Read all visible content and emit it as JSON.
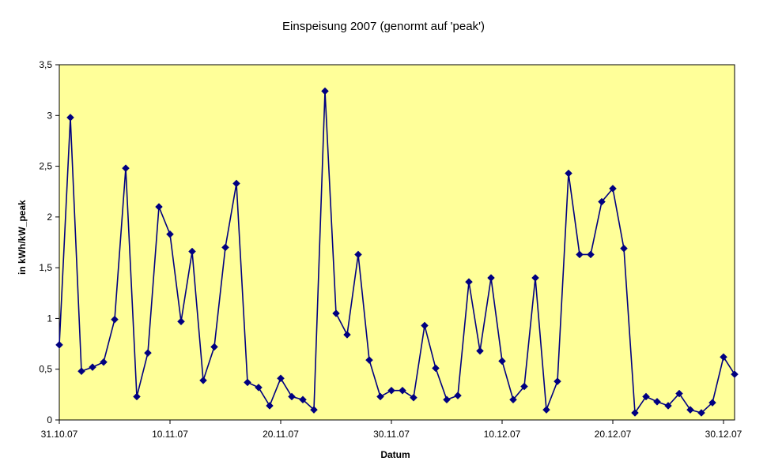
{
  "chart_data": {
    "type": "line",
    "title": "Einspeisung 2007 (genormt auf 'peak')",
    "xlabel": "Datum",
    "ylabel": "in kWh/kW_peak",
    "ylim": [
      0,
      3.5
    ],
    "yticks": [
      {
        "value": 0,
        "label": "0"
      },
      {
        "value": 0.5,
        "label": "0,5"
      },
      {
        "value": 1,
        "label": "1"
      },
      {
        "value": 1.5,
        "label": "1,5"
      },
      {
        "value": 2,
        "label": "2"
      },
      {
        "value": 2.5,
        "label": "2,5"
      },
      {
        "value": 3,
        "label": "3"
      },
      {
        "value": 3.5,
        "label": "3,5"
      }
    ],
    "xticks": [
      {
        "index": 0,
        "label": "31.10.07"
      },
      {
        "index": 10,
        "label": "10.11.07"
      },
      {
        "index": 20,
        "label": "20.11.07"
      },
      {
        "index": 30,
        "label": "30.11.07"
      },
      {
        "index": 40,
        "label": "10.12.07"
      },
      {
        "index": 50,
        "label": "20.12.07"
      },
      {
        "index": 60,
        "label": "30.12.07"
      }
    ],
    "grid": false,
    "legend": false,
    "colors": {
      "plot_background": "#ffff99",
      "series": "#000080"
    },
    "series": [
      {
        "values": [
          0.74,
          2.98,
          0.48,
          0.52,
          0.57,
          0.99,
          2.48,
          0.23,
          0.66,
          2.1,
          1.83,
          0.97,
          1.66,
          0.39,
          0.72,
          1.7,
          2.33,
          0.37,
          0.32,
          0.14,
          0.41,
          0.23,
          0.2,
          0.1,
          3.24,
          1.05,
          0.84,
          1.63,
          0.59,
          0.23,
          0.29,
          0.29,
          0.22,
          0.93,
          0.51,
          0.2,
          0.24,
          1.36,
          0.68,
          1.4,
          0.58,
          0.2,
          0.33,
          1.4,
          0.1,
          0.38,
          2.43,
          1.63,
          1.63,
          2.15,
          2.28,
          1.69,
          0.07,
          0.23,
          0.18,
          0.14,
          0.26,
          0.1,
          0.07,
          0.17,
          0.62,
          0.45
        ]
      }
    ]
  }
}
